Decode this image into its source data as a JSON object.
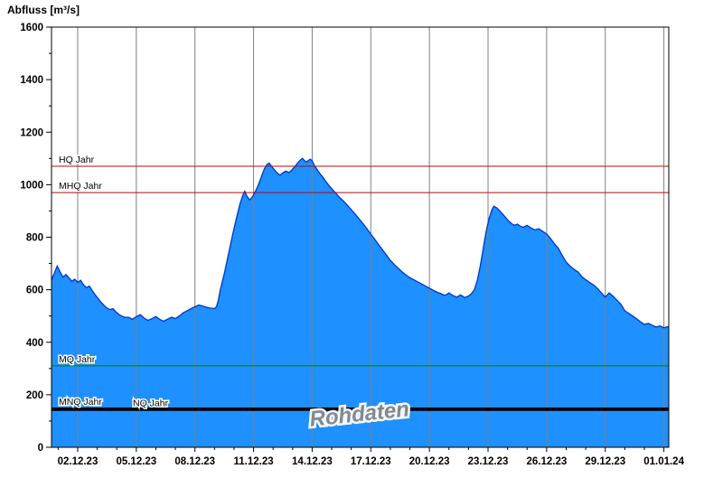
{
  "chart_data": {
    "type": "area",
    "title": "Abfluss [m³/s]",
    "xlabel": "",
    "ylabel": "Abfluss [m³/s]",
    "ylim": [
      0,
      1600
    ],
    "y_tick_step": 200,
    "y_minor_step": 100,
    "x_range_days": [
      -1.34,
      30.25
    ],
    "grid": "vertical-only",
    "legend": "none",
    "x_ticks": [
      {
        "day": 0,
        "label": "02.12.23"
      },
      {
        "day": 3,
        "label": "05.12.23"
      },
      {
        "day": 6,
        "label": "08.12.23"
      },
      {
        "day": 9,
        "label": "11.12.23"
      },
      {
        "day": 12,
        "label": "14.12.23"
      },
      {
        "day": 15,
        "label": "17.12.23"
      },
      {
        "day": 18,
        "label": "20.12.23"
      },
      {
        "day": 21,
        "label": "23.12.23"
      },
      {
        "day": 24,
        "label": "26.12.23"
      },
      {
        "day": 27,
        "label": "29.12.23"
      },
      {
        "day": 30,
        "label": "01.01.24"
      }
    ],
    "reference_lines": [
      {
        "label": "HQ Jahr",
        "value": 1070,
        "color": "#cc0000",
        "width": 1,
        "label_offset_x": 8
      },
      {
        "label": "MHQ Jahr",
        "value": 970,
        "color": "#cc0000",
        "width": 1,
        "label_offset_x": 8
      },
      {
        "label": "MQ Jahr",
        "value": 310,
        "color": "#008000",
        "width": 1,
        "label_offset_x": 8
      },
      {
        "label": "MNQ Jahr",
        "value": 148,
        "color": "#000000",
        "width": 2,
        "label_offset_x": 8
      },
      {
        "label": "NQ Jahr",
        "value": 142,
        "color": "#000000",
        "width": 2,
        "label_offset_x": 90
      }
    ],
    "watermark": {
      "text": "Rohdaten",
      "rotation_deg": -6
    },
    "colors": {
      "fill": "#1e90ff",
      "line": "#0033cc",
      "grid": "#808080",
      "axis": "#000000",
      "watermark": "#8a8a8a"
    },
    "series": [
      {
        "name": "Abfluss Rohdaten",
        "points": [
          [
            -1.34,
            638
          ],
          [
            -1.2,
            662
          ],
          [
            -1.05,
            690
          ],
          [
            -0.9,
            668
          ],
          [
            -0.75,
            648
          ],
          [
            -0.6,
            658
          ],
          [
            -0.45,
            646
          ],
          [
            -0.3,
            632
          ],
          [
            -0.15,
            640
          ],
          [
            0,
            628
          ],
          [
            0.15,
            636
          ],
          [
            0.3,
            618
          ],
          [
            0.45,
            608
          ],
          [
            0.6,
            614
          ],
          [
            0.75,
            596
          ],
          [
            0.9,
            580
          ],
          [
            1.05,
            566
          ],
          [
            1.2,
            552
          ],
          [
            1.35,
            540
          ],
          [
            1.5,
            530
          ],
          [
            1.65,
            524
          ],
          [
            1.8,
            528
          ],
          [
            1.95,
            516
          ],
          [
            2.1,
            506
          ],
          [
            2.25,
            500
          ],
          [
            2.4,
            495
          ],
          [
            2.6,
            495
          ],
          [
            2.8,
            488
          ],
          [
            3.0,
            497
          ],
          [
            3.2,
            505
          ],
          [
            3.4,
            492
          ],
          [
            3.6,
            483
          ],
          [
            3.8,
            490
          ],
          [
            4.0,
            498
          ],
          [
            4.2,
            487
          ],
          [
            4.4,
            480
          ],
          [
            4.6,
            488
          ],
          [
            4.8,
            495
          ],
          [
            5.0,
            490
          ],
          [
            5.2,
            500
          ],
          [
            5.4,
            512
          ],
          [
            5.6,
            520
          ],
          [
            5.8,
            528
          ],
          [
            6.0,
            535
          ],
          [
            6.2,
            542
          ],
          [
            6.4,
            538
          ],
          [
            6.6,
            533
          ],
          [
            6.8,
            530
          ],
          [
            7.0,
            528
          ],
          [
            7.1,
            535
          ],
          [
            7.2,
            560
          ],
          [
            7.3,
            600
          ],
          [
            7.5,
            660
          ],
          [
            7.7,
            730
          ],
          [
            7.9,
            800
          ],
          [
            8.1,
            865
          ],
          [
            8.3,
            925
          ],
          [
            8.45,
            960
          ],
          [
            8.55,
            975
          ],
          [
            8.65,
            958
          ],
          [
            8.8,
            942
          ],
          [
            8.95,
            955
          ],
          [
            9.1,
            975
          ],
          [
            9.25,
            1000
          ],
          [
            9.4,
            1030
          ],
          [
            9.55,
            1060
          ],
          [
            9.7,
            1078
          ],
          [
            9.8,
            1082
          ],
          [
            9.9,
            1072
          ],
          [
            10.05,
            1058
          ],
          [
            10.2,
            1045
          ],
          [
            10.35,
            1036
          ],
          [
            10.5,
            1045
          ],
          [
            10.65,
            1052
          ],
          [
            10.8,
            1046
          ],
          [
            10.95,
            1055
          ],
          [
            11.1,
            1068
          ],
          [
            11.25,
            1082
          ],
          [
            11.4,
            1094
          ],
          [
            11.5,
            1100
          ],
          [
            11.6,
            1092
          ],
          [
            11.7,
            1086
          ],
          [
            11.8,
            1092
          ],
          [
            11.9,
            1097
          ],
          [
            12.0,
            1090
          ],
          [
            12.1,
            1075
          ],
          [
            12.25,
            1058
          ],
          [
            12.4,
            1042
          ],
          [
            12.55,
            1028
          ],
          [
            12.7,
            1012
          ],
          [
            12.85,
            998
          ],
          [
            13.0,
            985
          ],
          [
            13.2,
            968
          ],
          [
            13.4,
            952
          ],
          [
            13.6,
            938
          ],
          [
            13.8,
            922
          ],
          [
            14.0,
            905
          ],
          [
            14.2,
            888
          ],
          [
            14.4,
            870
          ],
          [
            14.6,
            852
          ],
          [
            14.8,
            832
          ],
          [
            15.0,
            812
          ],
          [
            15.2,
            792
          ],
          [
            15.4,
            772
          ],
          [
            15.6,
            752
          ],
          [
            15.8,
            732
          ],
          [
            16.0,
            712
          ],
          [
            16.2,
            696
          ],
          [
            16.4,
            682
          ],
          [
            16.6,
            668
          ],
          [
            16.8,
            656
          ],
          [
            17.0,
            646
          ],
          [
            17.2,
            638
          ],
          [
            17.4,
            630
          ],
          [
            17.6,
            622
          ],
          [
            17.8,
            614
          ],
          [
            18.0,
            606
          ],
          [
            18.2,
            598
          ],
          [
            18.4,
            590
          ],
          [
            18.6,
            585
          ],
          [
            18.8,
            578
          ],
          [
            19.0,
            588
          ],
          [
            19.2,
            578
          ],
          [
            19.4,
            572
          ],
          [
            19.6,
            580
          ],
          [
            19.8,
            570
          ],
          [
            20.0,
            576
          ],
          [
            20.15,
            585
          ],
          [
            20.3,
            600
          ],
          [
            20.45,
            635
          ],
          [
            20.6,
            690
          ],
          [
            20.75,
            755
          ],
          [
            20.9,
            820
          ],
          [
            21.05,
            870
          ],
          [
            21.2,
            905
          ],
          [
            21.3,
            918
          ],
          [
            21.45,
            912
          ],
          [
            21.6,
            900
          ],
          [
            21.75,
            888
          ],
          [
            21.9,
            875
          ],
          [
            22.05,
            862
          ],
          [
            22.2,
            852
          ],
          [
            22.35,
            845
          ],
          [
            22.5,
            850
          ],
          [
            22.65,
            842
          ],
          [
            22.8,
            838
          ],
          [
            23.0,
            845
          ],
          [
            23.2,
            835
          ],
          [
            23.4,
            828
          ],
          [
            23.6,
            832
          ],
          [
            23.8,
            822
          ],
          [
            24.0,
            812
          ],
          [
            24.2,
            795
          ],
          [
            24.4,
            775
          ],
          [
            24.6,
            758
          ],
          [
            24.8,
            730
          ],
          [
            25.0,
            705
          ],
          [
            25.2,
            690
          ],
          [
            25.4,
            678
          ],
          [
            25.6,
            668
          ],
          [
            25.8,
            650
          ],
          [
            26.0,
            638
          ],
          [
            26.2,
            628
          ],
          [
            26.4,
            618
          ],
          [
            26.6,
            605
          ],
          [
            26.8,
            588
          ],
          [
            27.0,
            572
          ],
          [
            27.2,
            588
          ],
          [
            27.4,
            575
          ],
          [
            27.6,
            560
          ],
          [
            27.8,
            545
          ],
          [
            28.0,
            520
          ],
          [
            28.2,
            510
          ],
          [
            28.4,
            500
          ],
          [
            28.6,
            490
          ],
          [
            28.8,
            478
          ],
          [
            29.0,
            468
          ],
          [
            29.2,
            472
          ],
          [
            29.4,
            465
          ],
          [
            29.6,
            458
          ],
          [
            29.8,
            462
          ],
          [
            30.0,
            455
          ],
          [
            30.25,
            460
          ]
        ]
      }
    ]
  }
}
